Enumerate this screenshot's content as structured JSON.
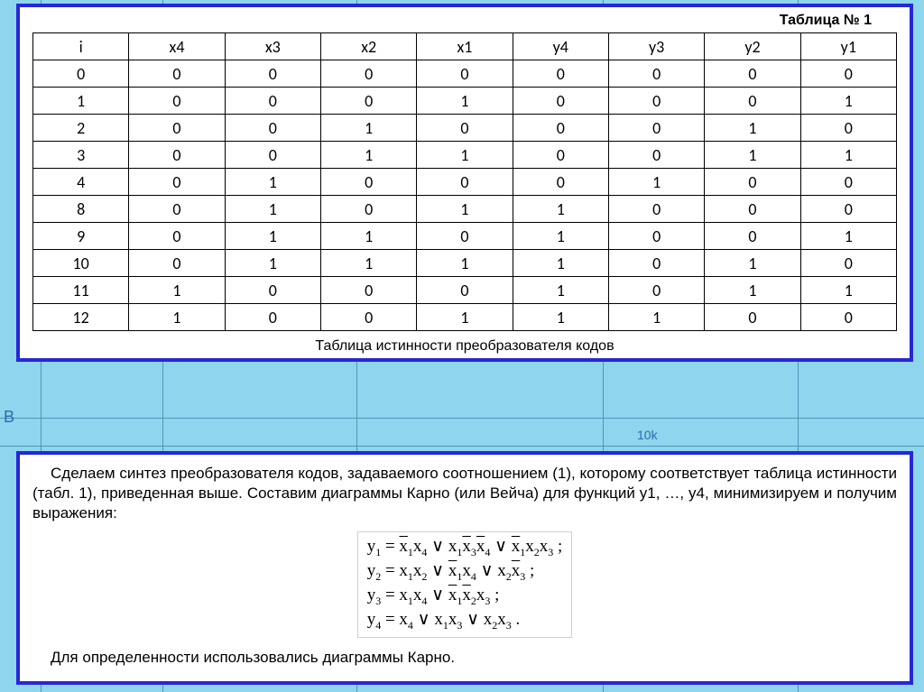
{
  "table": {
    "title": "Таблица № 1",
    "headers": [
      "i",
      "x4",
      "x3",
      "x2",
      "x1",
      "y4",
      "y3",
      "y2",
      "y1"
    ],
    "rows": [
      [
        "0",
        "0",
        "0",
        "0",
        "0",
        "0",
        "0",
        "0",
        "0"
      ],
      [
        "1",
        "0",
        "0",
        "0",
        "1",
        "0",
        "0",
        "0",
        "1"
      ],
      [
        "2",
        "0",
        "0",
        "1",
        "0",
        "0",
        "0",
        "1",
        "0"
      ],
      [
        "3",
        "0",
        "0",
        "1",
        "1",
        "0",
        "0",
        "1",
        "1"
      ],
      [
        "4",
        "0",
        "1",
        "0",
        "0",
        "0",
        "1",
        "0",
        "0"
      ],
      [
        "8",
        "0",
        "1",
        "0",
        "1",
        "1",
        "0",
        "0",
        "0"
      ],
      [
        "9",
        "0",
        "1",
        "1",
        "0",
        "1",
        "0",
        "0",
        "1"
      ],
      [
        "10",
        "0",
        "1",
        "1",
        "1",
        "1",
        "0",
        "1",
        "0"
      ],
      [
        "11",
        "1",
        "0",
        "0",
        "0",
        "1",
        "0",
        "1",
        "1"
      ],
      [
        "12",
        "1",
        "0",
        "0",
        "1",
        "1",
        "1",
        "0",
        "0"
      ]
    ],
    "caption": "Таблица истинности преобразователя кодов",
    "border_color": "#000000",
    "frame_color": "#2727d6",
    "background_color": "#ffffff",
    "header_fontsize": 18,
    "cell_fontsize": 18
  },
  "text": {
    "para": "Сделаем синтез преобразователя кодов, задаваемого соотношением (1), которому соответствует таблица истинности (табл. 1), приведенная выше. Составим диаграммы Карно (или Вейча) для функций y1, …, y4, минимизируем и получим выражения:",
    "para_last": "Для определенности использовались диаграммы Карно."
  },
  "formulas": {
    "font_family": "Times New Roman",
    "font_size": 19,
    "border_color": "#cfcfcf"
  },
  "bg": {
    "resistor_label": "10k",
    "left_char": "B",
    "page_color": "#8dd6ee",
    "grid_color": "#5294b8"
  }
}
